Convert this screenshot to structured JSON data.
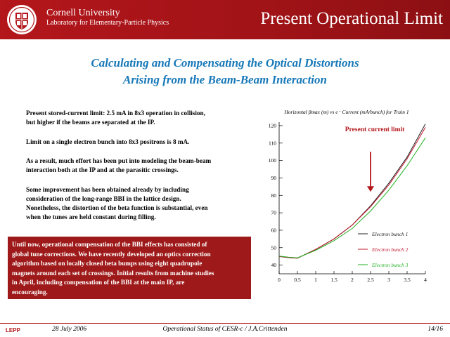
{
  "header": {
    "university": "Cornell University",
    "lab": "Laboratory for Elementary-Particle Physics",
    "title": "Present Operational Limit",
    "background_color": "#b3161b",
    "logo_icon": "cornell-seal-icon"
  },
  "subtitle": {
    "line1": "Calculating and Compensating the Optical Distortions",
    "line2": "Arising from the Beam-Beam Interaction"
  },
  "paragraphs": [
    {
      "lines": [
        "Present stored-current limit: 2.5 mA in 8x3 operation in collision,",
        "but higher if the beams are separated at the IP."
      ]
    },
    {
      "lines": [
        "Limit on a single electron bunch into 8x3 positrons is 8 mA."
      ]
    },
    {
      "lines": [
        "As a result, much effort has been put into modeling the beam-beam",
        "interaction both at the IP and at the parasitic crossings."
      ]
    },
    {
      "lines": [
        "Some improvement has been obtained already by including",
        "consideration of the long-range BBI in the lattice design.",
        "Nonetheless, the distortion of the beta function is substantial, even",
        "when the tunes are held constant during filling."
      ]
    }
  ],
  "highlight": {
    "lines": [
      "Until now, operational compensation of the BBI effects has consisted of",
      "global tune corrections. We have recently developed an optics correction",
      "algorithm based on locally closed beta bumps using eight quadrupole",
      "magnets around each set of crossings. Initial results from machine studies",
      "in April, including compensation of the BBI at the main IP,  are",
      "encouraging."
    ],
    "background_color": "#9e1a1a"
  },
  "chart_data": {
    "type": "line",
    "title": "Horizontal βmax (m) vs e⁻ Current (mA/bunch) for Train 1",
    "xlabel": "",
    "ylabel": "",
    "xlim": [
      0,
      4
    ],
    "ylim": [
      35,
      122
    ],
    "x_ticks": [
      0,
      0.5,
      1,
      1.5,
      2,
      2.5,
      3,
      3.5,
      4
    ],
    "x_tick_labels": [
      "0",
      "0.5",
      "1",
      "1.5",
      "2",
      "2.5",
      "3",
      "3.5",
      "4"
    ],
    "y_ticks": [
      40,
      50,
      60,
      70,
      80,
      90,
      100,
      110,
      120
    ],
    "y_tick_labels": [
      "40",
      "50",
      "60",
      "70",
      "80",
      "90",
      "100",
      "110",
      "120"
    ],
    "legend_position": "bottom-right",
    "series": [
      {
        "name": "Electron bunch 1",
        "color": "#222222",
        "x": [
          0,
          0.25,
          0.5,
          1,
          1.5,
          2,
          2.5,
          3,
          3.5,
          4
        ],
        "y": [
          45,
          44.3,
          44,
          49,
          55,
          63,
          74,
          87,
          102,
          121
        ]
      },
      {
        "name": "Electron bunch 2",
        "color": "#c0142a",
        "x": [
          0,
          0.25,
          0.5,
          1,
          1.5,
          2,
          2.5,
          3,
          3.5,
          4
        ],
        "y": [
          45,
          44.3,
          44,
          49,
          55,
          63,
          73.5,
          86,
          101,
          119
        ]
      },
      {
        "name": "Electron bunch 3",
        "color": "#22b022",
        "x": [
          0,
          0.25,
          0.5,
          1,
          1.5,
          2,
          2.5,
          3,
          3.5,
          4
        ],
        "y": [
          45.2,
          44.6,
          44.2,
          48.5,
          54,
          61,
          71,
          83,
          97,
          113
        ]
      }
    ],
    "annotation": {
      "text": "Present current limit",
      "x": 2.5,
      "y_from": 105,
      "y_to": 82,
      "color": "#b3161b"
    }
  },
  "footer": {
    "logo": "LEPP",
    "date": "28 July 2006",
    "center": "Operational Status of CESR-c / J.A.Crittenden",
    "page": "14/16"
  }
}
